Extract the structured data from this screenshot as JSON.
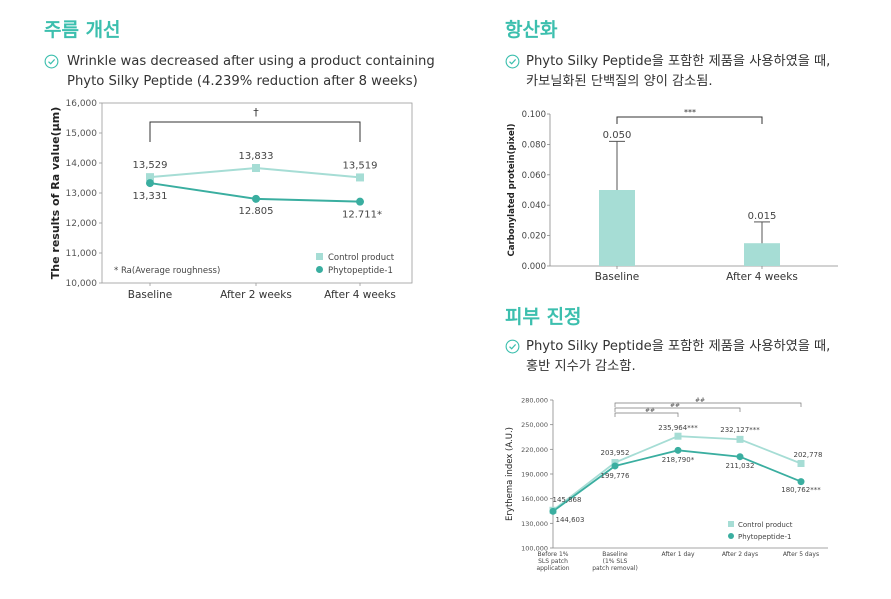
{
  "colors": {
    "accent": "#3cbfae",
    "control": "#a6ddd5",
    "phyto": "#3aaea0",
    "bar": "#a6ddd5"
  },
  "wrinkle": {
    "title": "주름 개선",
    "desc_line1": "Wrinkle was decreased after using a product containing",
    "desc_line2": "Phyto Silky Peptide (4.239% reduction after 8 weeks)",
    "chart_data": {
      "type": "line",
      "ylabel": "The results of Ra value(μm)",
      "ylim": [
        10000,
        16000
      ],
      "yticks": [
        "10,000",
        "11,000",
        "12,000",
        "13,000",
        "14,000",
        "15,000",
        "16,000"
      ],
      "categories": [
        "Baseline",
        "After 2 weeks",
        "After 4 weeks"
      ],
      "series": [
        {
          "name": "Control product",
          "values": [
            13529,
            13833,
            13519
          ],
          "labels": [
            "13,529",
            "13,833",
            "13,519"
          ]
        },
        {
          "name": "Phytopeptide-1",
          "values": [
            13331,
            12805,
            12711
          ],
          "labels": [
            "13,331",
            "12.805",
            "12.711*"
          ]
        }
      ],
      "bracket_label": "†",
      "note": "* Ra(Average roughness)",
      "legend": "bottom-right"
    }
  },
  "antiox": {
    "title": "항산화",
    "desc_line1": "Phyto Silky Peptide을 포함한 제품을 사용하였을 때,",
    "desc_line2": "카보닐화된 단백질의 양이 감소됨.",
    "chart_data": {
      "type": "bar",
      "ylabel": "Carbonylated protein(pixel)",
      "ylim": [
        0,
        0.1
      ],
      "yticks": [
        "0.000",
        "0.020",
        "0.040",
        "0.060",
        "0.080",
        "0.100"
      ],
      "categories": [
        "Baseline",
        "After 4 weeks"
      ],
      "values": [
        0.05,
        0.015
      ],
      "value_labels": [
        "0.050",
        "0.015"
      ],
      "error_upper": [
        0.082,
        0.029
      ],
      "bracket_label": "***"
    }
  },
  "calm": {
    "title": "피부 진정",
    "desc_line1": "Phyto Silky Peptide을 포함한 제품을 사용하였을 때,",
    "desc_line2": "홍반 지수가 감소함.",
    "chart_data": {
      "type": "line",
      "ylabel": "Erythema index (A.U.)",
      "ylim": [
        100000,
        280000
      ],
      "yticks": [
        "100,000",
        "130,000",
        "160,000",
        "190,000",
        "220,000",
        "250,000",
        "280,000"
      ],
      "categories": [
        [
          "Before 1%",
          "SLS patch",
          "application"
        ],
        [
          "Baseline",
          "(1% SLS",
          "patch removal)"
        ],
        [
          "After 1 day"
        ],
        [
          "After 2 days"
        ],
        [
          "After 5 days"
        ]
      ],
      "series": [
        {
          "name": "Control product",
          "values": [
            145868,
            203952,
            235964,
            232127,
            202778
          ],
          "labels": [
            "145,868",
            "203,952",
            "235,964***",
            "232,127***",
            "202,778"
          ]
        },
        {
          "name": "Phytopeptide-1",
          "values": [
            144603,
            199776,
            218790,
            211032,
            180762
          ],
          "labels": [
            "144,603",
            "199,776",
            "218,790*",
            "211,032",
            "180,762***"
          ]
        }
      ],
      "brackets": [
        "##",
        "##",
        "##"
      ],
      "legend": "bottom-right"
    }
  }
}
